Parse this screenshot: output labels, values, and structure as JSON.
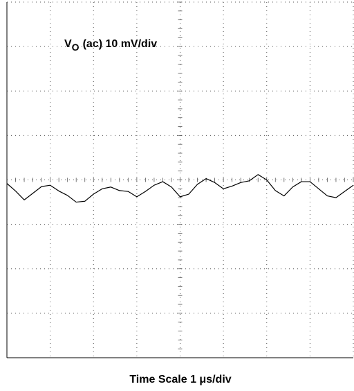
{
  "chart_data": {
    "type": "line",
    "title": {
      "symbol": "V",
      "subscript": "O",
      "text": "(ac) 10 mV/div"
    },
    "xlabel": "Time Scale 1 μs/div",
    "x": [
      0,
      0.2,
      0.4,
      0.6,
      0.8,
      1.0,
      1.2,
      1.4,
      1.6,
      1.8,
      2.0,
      2.2,
      2.4,
      2.6,
      2.8,
      3.0,
      3.2,
      3.4,
      3.6,
      3.8,
      4.0,
      4.2,
      4.4,
      4.6,
      4.8,
      5.0,
      5.2,
      5.4,
      5.6,
      5.8,
      6.0,
      6.2,
      6.4,
      6.6,
      6.8,
      7.0,
      7.2,
      7.4,
      7.6,
      7.8,
      8.0
    ],
    "series": [
      {
        "color": "#000000",
        "values": [
          -0.8,
          -2.5,
          -4.5,
          -3.0,
          -1.5,
          -1.2,
          -2.5,
          -3.5,
          -5.0,
          -4.8,
          -3.2,
          -2.0,
          -1.6,
          -2.4,
          -2.6,
          -3.8,
          -2.6,
          -1.2,
          -0.4,
          -1.6,
          -3.8,
          -3.2,
          -1.0,
          0.3,
          -0.6,
          -2.0,
          -1.4,
          -0.6,
          -0.2,
          1.2,
          0.0,
          -2.4,
          -3.6,
          -1.6,
          -0.4,
          -0.4,
          -2.0,
          -3.6,
          -4.0,
          -2.6,
          -1.2
        ]
      }
    ],
    "xlim": [
      0,
      8
    ],
    "ylim": [
      -40,
      40
    ],
    "xticks": [
      0,
      1,
      2,
      3,
      4,
      5,
      6,
      7,
      8
    ],
    "yticks": [
      -40,
      -30,
      -20,
      -10,
      0,
      10,
      20,
      30,
      40
    ],
    "grid": true
  }
}
